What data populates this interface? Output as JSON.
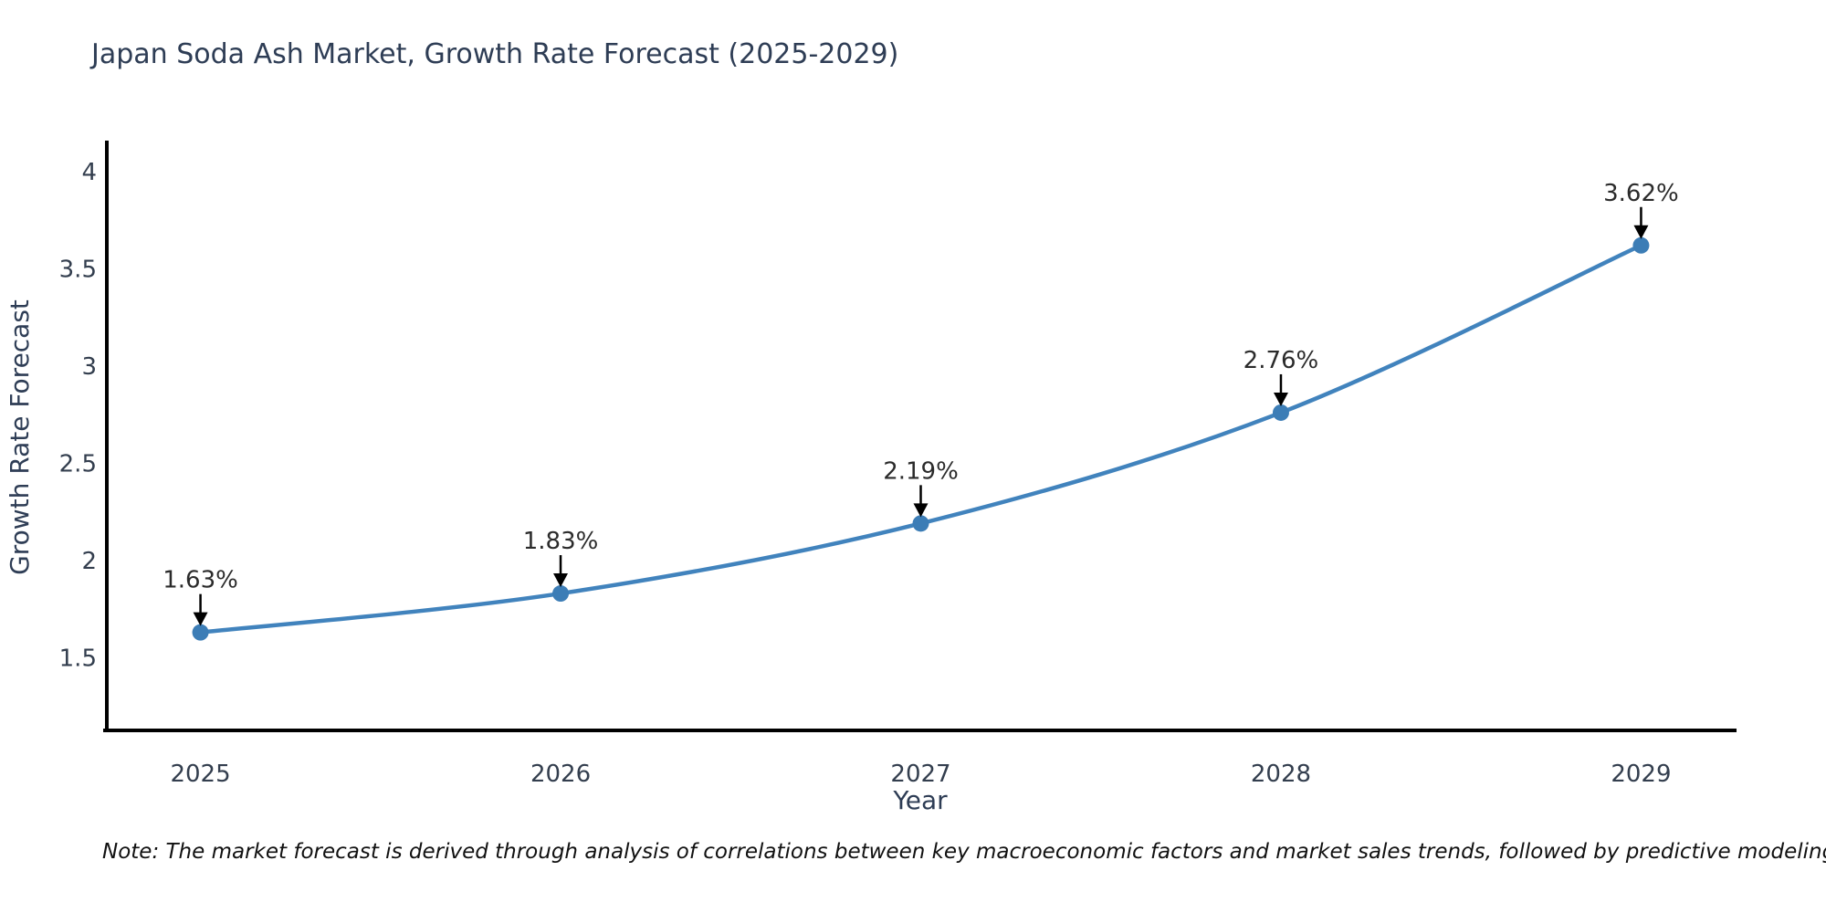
{
  "title": "Japan Soda Ash Market, Growth Rate Forecast (2025-2029)",
  "note": "Note: The market forecast is derived through analysis of correlations between key macroeconomic factors and market sales trends, followed by predictive modeling to project future sales",
  "colors": {
    "background": "#ffffff",
    "title_text": "#2e3d55",
    "tick_text": "#333e4e",
    "axis_line": "#000000",
    "series_line": "#4183bd",
    "marker_fill": "#3c7db6",
    "annotation_text": "#2b2b2b",
    "annotation_arrow": "#000000"
  },
  "chart_data": {
    "type": "line",
    "title": "Japan Soda Ash Market, Growth Rate Forecast (2025-2029)",
    "xlabel": "Year",
    "ylabel": "Growth Rate Forecast",
    "categories": [
      "2025",
      "2026",
      "2027",
      "2028",
      "2029"
    ],
    "x": [
      2025,
      2026,
      2027,
      2028,
      2029
    ],
    "series": [
      {
        "name": "Growth Rate Forecast",
        "values": [
          1.63,
          1.83,
          2.19,
          2.76,
          3.62
        ]
      }
    ],
    "point_labels": [
      "1.63%",
      "1.83%",
      "2.19%",
      "2.76%",
      "3.62%"
    ],
    "yticks": [
      1.5,
      2,
      2.5,
      3,
      3.5,
      4
    ],
    "ylim": [
      1.126,
      4.14
    ],
    "xlim": [
      2024.74,
      2029.26
    ],
    "grid": false,
    "legend": false,
    "line_shape": "spline",
    "annotations": true,
    "value_unit": "%"
  }
}
